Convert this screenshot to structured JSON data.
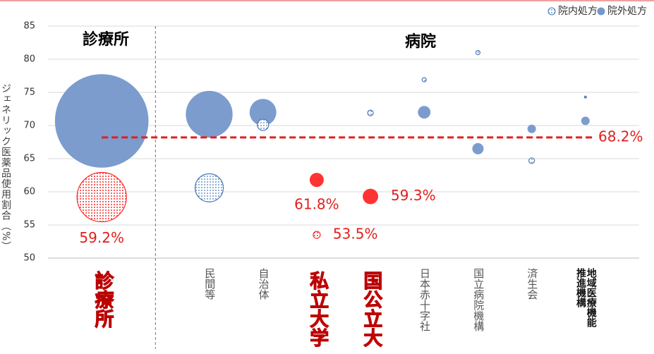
{
  "chart_data": {
    "type": "bubble",
    "y_label": "ジェネリック医薬品使用割合（%）",
    "section_labels": [
      "診療所",
      "病院"
    ],
    "categories": [
      "診療所",
      "民間等",
      "自治体",
      "私立大学",
      "国公立大",
      "日本赤十字社",
      "国立病院機構",
      "済生会",
      "地域医療機能推進機構"
    ],
    "x": [
      1,
      3,
      4,
      5,
      6,
      7,
      8,
      9,
      10
    ],
    "xlim": [
      0,
      11
    ],
    "divider_x": 2,
    "highlight_categories": [
      true,
      false,
      false,
      true,
      true,
      false,
      false,
      false,
      false
    ],
    "ylim": [
      50,
      85
    ],
    "yticks": [
      50,
      55,
      60,
      65,
      70,
      75,
      80,
      85
    ],
    "grid": true,
    "legend": "top-right",
    "series": [
      {
        "name": "院内処方",
        "color": "#4a78b8",
        "pattern": "dotted",
        "values": [
          59.2,
          60.6,
          70.1,
          53.5,
          71.9,
          76.9,
          81.0,
          64.7,
          74.3
        ],
        "sizes": [
          1225,
          400,
          64,
          25,
          16,
          9,
          9,
          16,
          2
        ],
        "point_colors": [
          "#ff2a2a",
          "#4a78b8",
          "#4a78b8",
          "#ff2a2a",
          "#4a78b8",
          "#4a78b8",
          "#4a78b8",
          "#4a78b8",
          "#4a78b8"
        ],
        "value_labels": [
          "59.2%",
          null,
          null,
          "53.5%",
          null,
          null,
          null,
          null,
          null
        ]
      },
      {
        "name": "院外処方",
        "color": "#7597cb",
        "pattern": "solid",
        "values": [
          70.7,
          71.7,
          72.0,
          61.8,
          59.3,
          72.0,
          66.5,
          69.5,
          70.7
        ],
        "sizes": [
          4400,
          1100,
          360,
          100,
          120,
          80,
          64,
          36,
          36
        ],
        "point_colors": [
          "#7597cb",
          "#7597cb",
          "#7597cb",
          "#ff3333",
          "#ff3333",
          "#7597cb",
          "#7597cb",
          "#7597cb",
          "#7597cb"
        ],
        "value_labels": [
          null,
          null,
          null,
          "61.8%",
          "59.3%",
          null,
          null,
          null,
          null
        ]
      }
    ],
    "reference_line": {
      "value": 68.2,
      "label": "68.2%",
      "color": "#e0201c"
    }
  }
}
